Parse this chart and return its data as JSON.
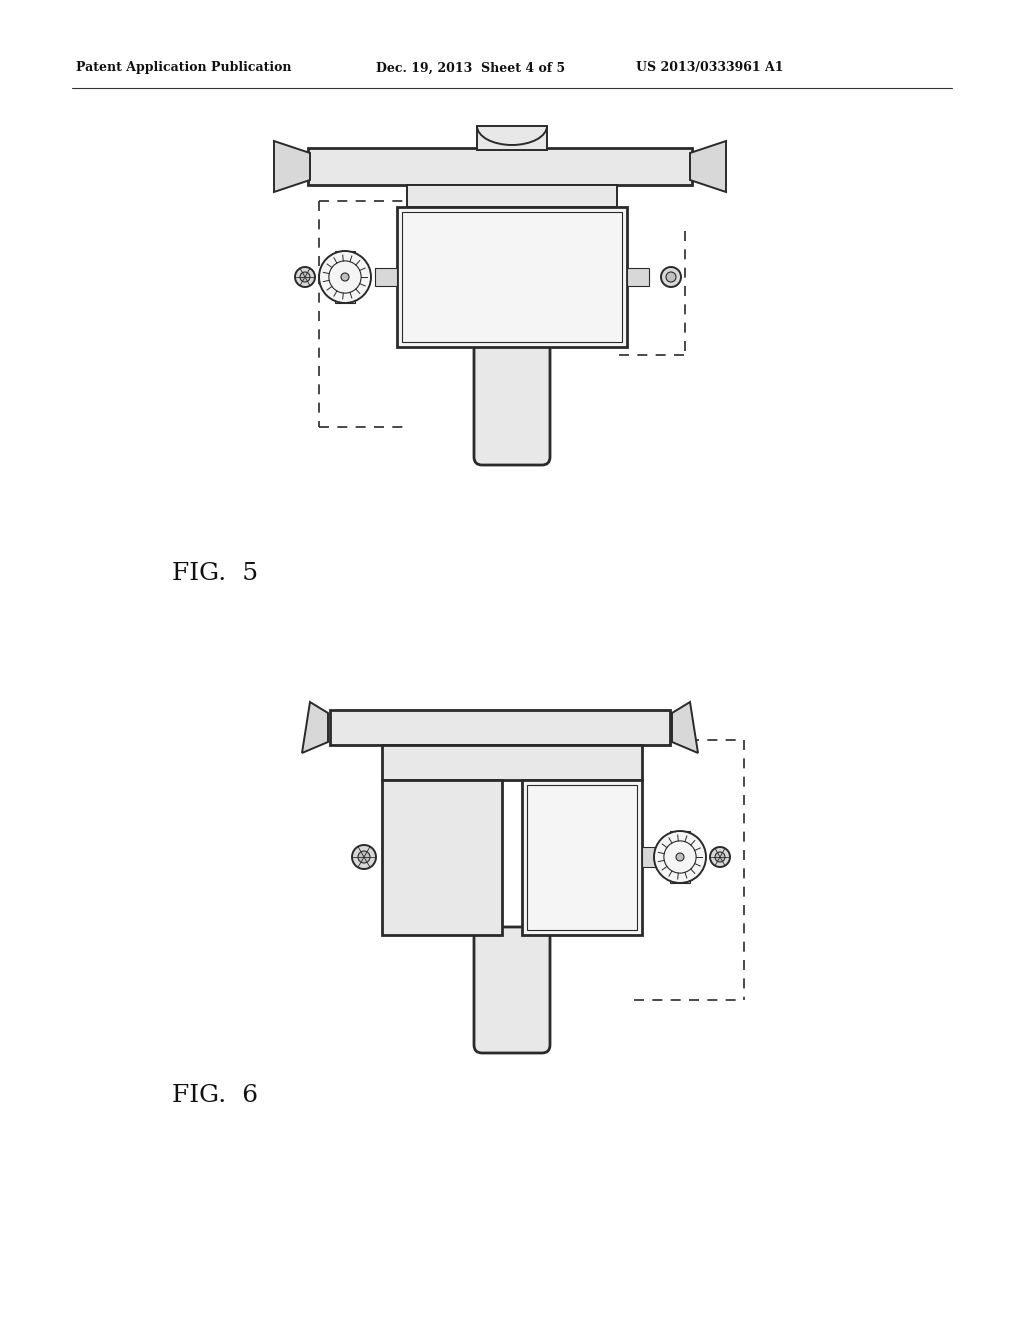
{
  "background_color": "#ffffff",
  "header_text": "Patent Application Publication",
  "header_date": "Dec. 19, 2013  Sheet 4 of 5",
  "header_patent": "US 2013/0333961 A1",
  "fig5_label": "FIG.  5",
  "fig6_label": "FIG.  6",
  "line_color": "#2a2a2a",
  "dash_color": "#2a2a2a",
  "fill_light": "#e8e8e8",
  "fill_mid": "#d8d8d8",
  "fill_dark": "#c0c0c0",
  "fill_white": "#f5f5f5"
}
